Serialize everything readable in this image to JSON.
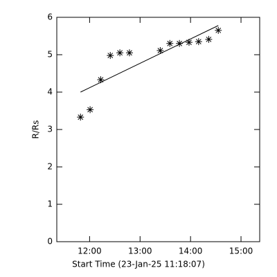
{
  "chart_data": {
    "type": "scatter",
    "xlabel": "Start Time (23-Jan-25 11:18:07)",
    "ylabel": "R/Rs",
    "xlim": [
      11.35,
      15.37
    ],
    "ylim": [
      0,
      6
    ],
    "xticks": [
      {
        "value": 12,
        "label": "12:00"
      },
      {
        "value": 13,
        "label": "13:00"
      },
      {
        "value": 14,
        "label": "14:00"
      },
      {
        "value": 15,
        "label": "15:00"
      }
    ],
    "yticks": [
      0,
      1,
      2,
      3,
      4,
      5,
      6
    ],
    "color": "#000000",
    "x": [
      11.82,
      12.01,
      12.22,
      12.41,
      12.6,
      12.79,
      13.4,
      13.59,
      13.78,
      13.97,
      14.16,
      14.36,
      14.55
    ],
    "values": [
      3.33,
      3.53,
      4.33,
      4.98,
      5.05,
      5.05,
      5.11,
      5.3,
      5.3,
      5.33,
      5.35,
      5.41,
      5.65
    ],
    "fit": {
      "x": [
        11.82,
        14.55
      ],
      "values": [
        4.0,
        5.78
      ]
    }
  }
}
